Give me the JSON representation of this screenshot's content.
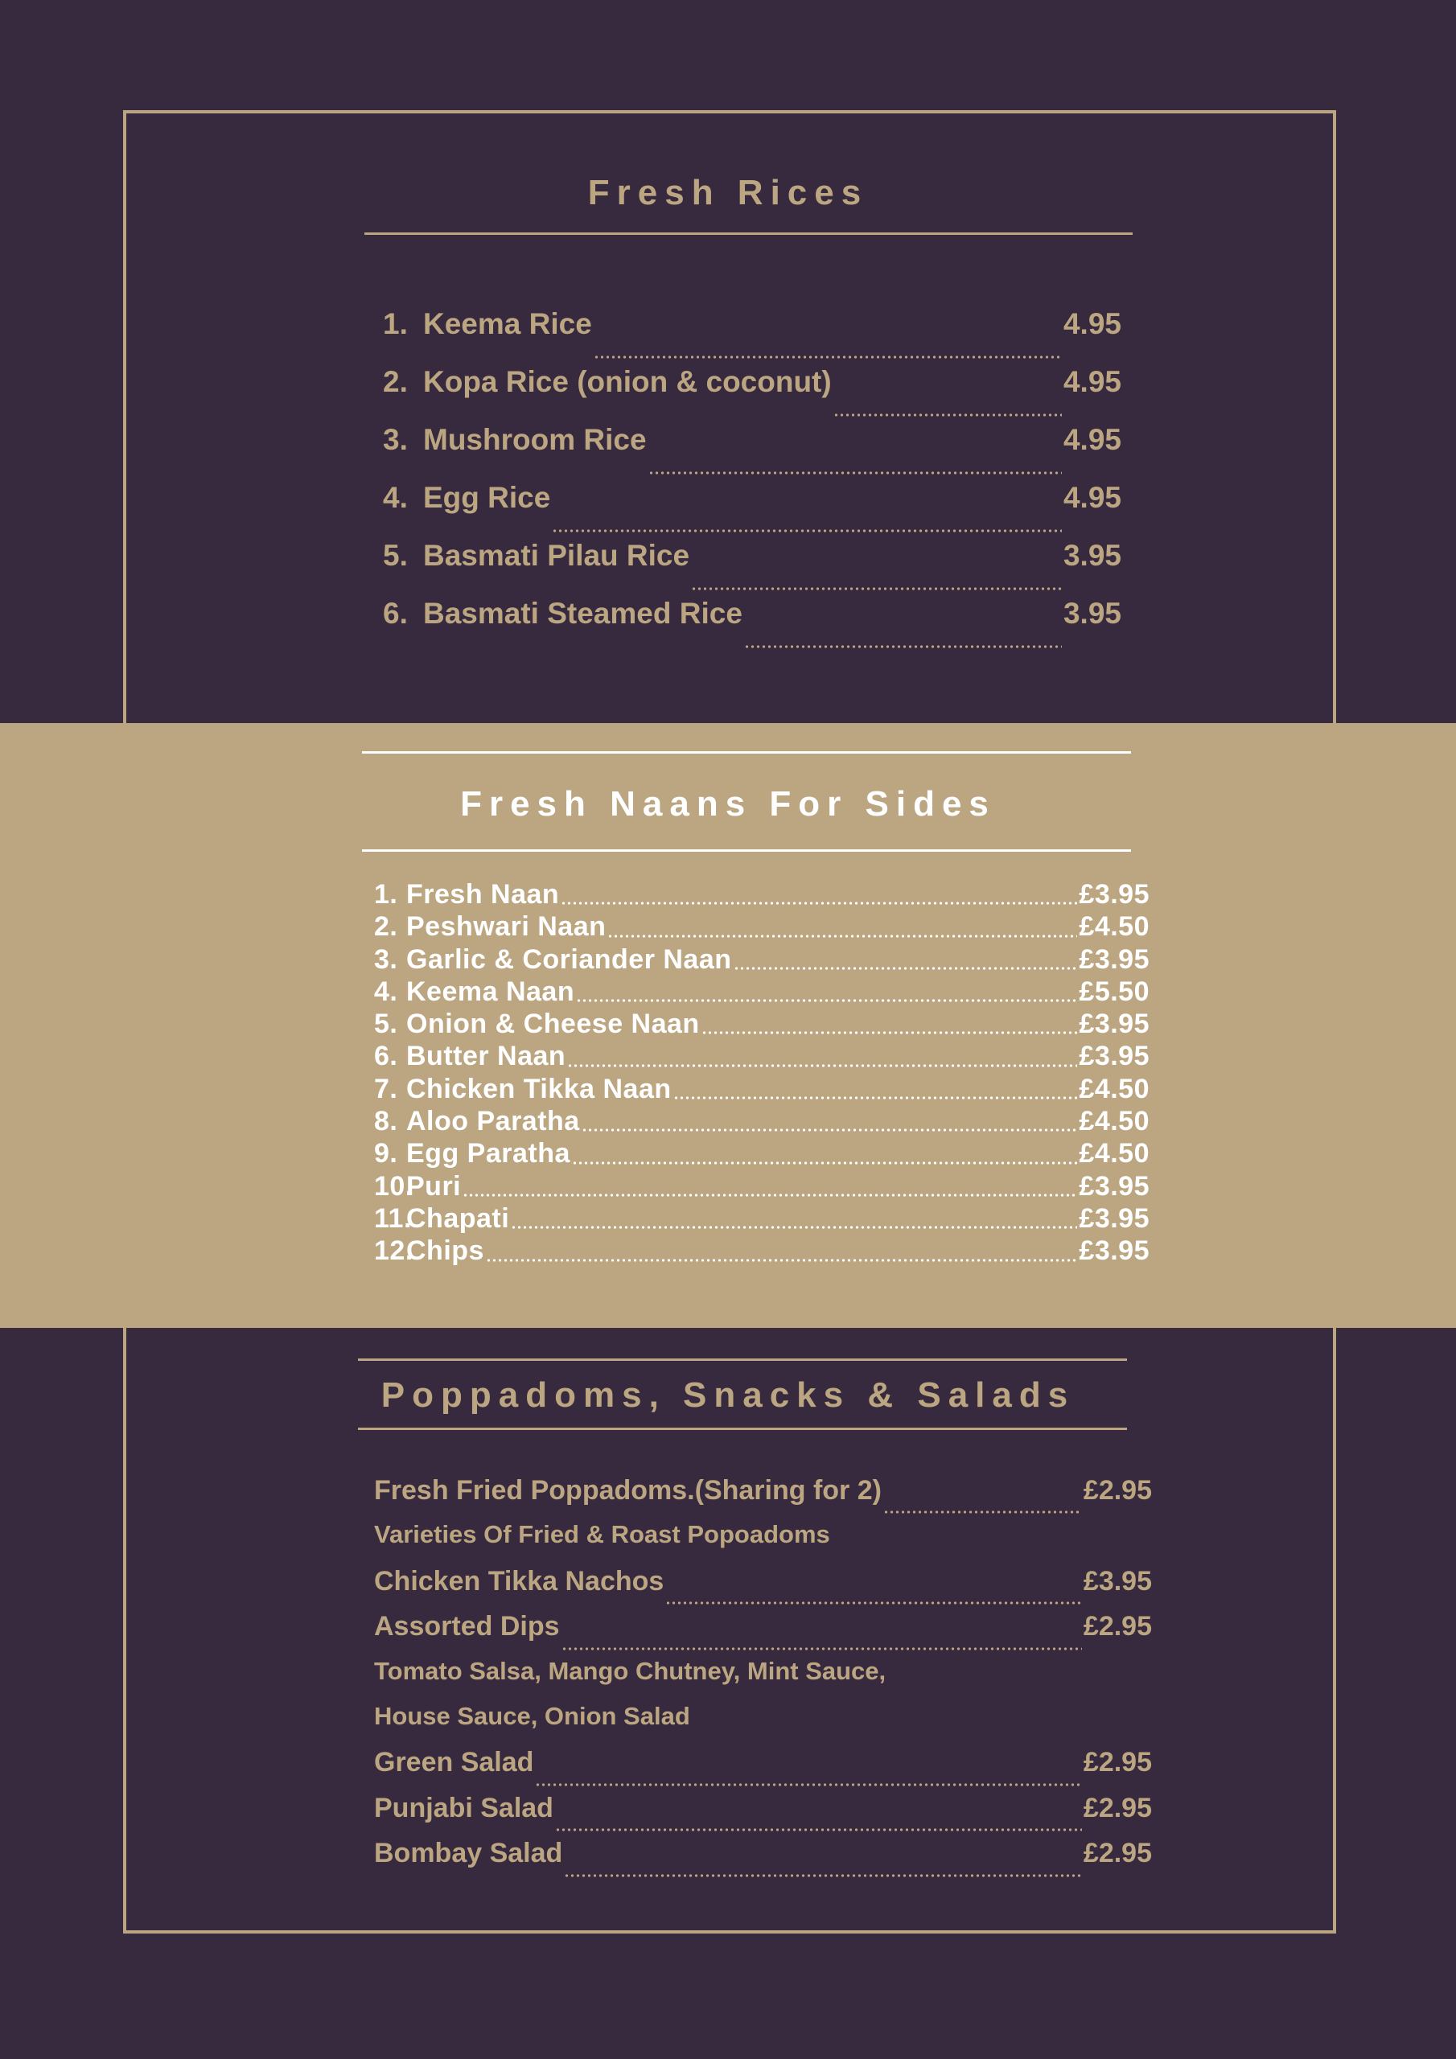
{
  "colors": {
    "background": "#372a3f",
    "accent": "#bca681",
    "naan_text": "#ffffff"
  },
  "rices": {
    "title": "Fresh Rices",
    "items": [
      {
        "num": "1.",
        "name": "Keema Rice",
        "price": "4.95"
      },
      {
        "num": "2.",
        "name": "Kopa Rice (onion & coconut)",
        "price": "4.95"
      },
      {
        "num": "3.",
        "name": "Mushroom Rice",
        "price": "4.95"
      },
      {
        "num": "4.",
        "name": "Egg Rice",
        "price": "4.95"
      },
      {
        "num": "5.",
        "name": "Basmati Pilau Rice",
        "price": "3.95"
      },
      {
        "num": "6.",
        "name": "Basmati Steamed Rice",
        "price": "3.95"
      }
    ]
  },
  "naans": {
    "title": "Fresh Naans For Sides",
    "items": [
      {
        "num": "1.",
        "name": "Fresh Naan",
        "price": "£3.95"
      },
      {
        "num": "2.",
        "name": "Peshwari Naan",
        "price": "£4.50"
      },
      {
        "num": "3.",
        "name": "Garlic & Coriander Naan",
        "price": "£3.95"
      },
      {
        "num": "4.",
        "name": "Keema Naan",
        "price": "£5.50"
      },
      {
        "num": "5.",
        "name": "Onion & Cheese Naan",
        "price": "£3.95"
      },
      {
        "num": "6.",
        "name": "Butter Naan",
        "price": "£3.95"
      },
      {
        "num": "7.",
        "name": "Chicken Tikka Naan",
        "price": "£4.50"
      },
      {
        "num": "8.",
        "name": "Aloo Paratha",
        "price": "£4.50"
      },
      {
        "num": "9.",
        "name": "Egg Paratha",
        "price": "£4.50"
      },
      {
        "num": "10.",
        "name": "Puri",
        "price": "£3.95"
      },
      {
        "num": "11.",
        "name": "Chapati",
        "price": "£3.95"
      },
      {
        "num": "12.",
        "name": "Chips",
        "price": "£3.95"
      }
    ]
  },
  "snacks": {
    "title": "Poppadoms, Snacks & Salads",
    "items": [
      {
        "name": "Fresh Fried Poppadoms.(Sharing for 2)",
        "price": "£2.95"
      },
      {
        "name": "Varieties Of Fried & Roast Popoadoms",
        "price": null
      },
      {
        "name": "Chicken Tikka Nachos",
        "price": "£3.95"
      },
      {
        "name": "Assorted Dips",
        "price": "£2.95"
      },
      {
        "name": "Tomato Salsa, Mango Chutney, Mint Sauce,",
        "price": null
      },
      {
        "name": "House Sauce, Onion Salad",
        "price": null
      },
      {
        "name": "Green Salad",
        "price": "£2.95"
      },
      {
        "name": "Punjabi Salad",
        "price": "£2.95"
      },
      {
        "name": "Bombay Salad",
        "price": "£2.95"
      }
    ]
  }
}
